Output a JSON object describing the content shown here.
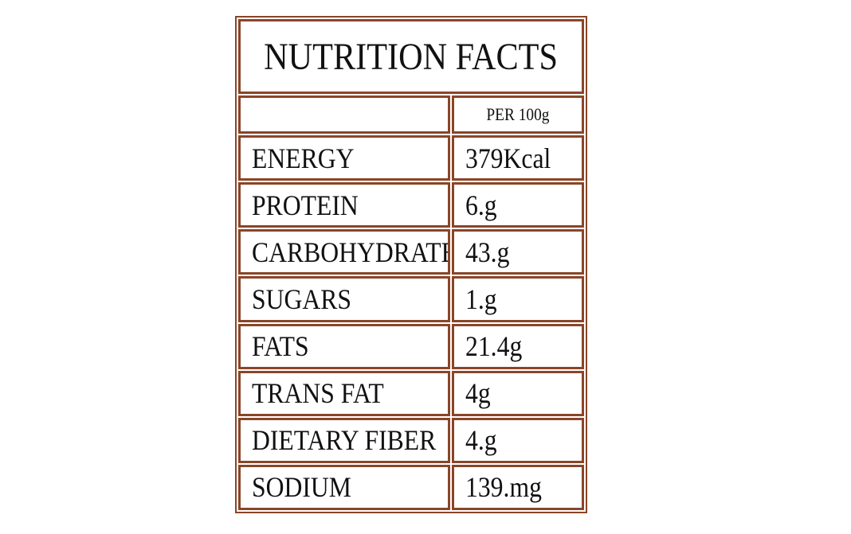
{
  "title": "NUTRITION FACTS",
  "table": {
    "header": [
      "",
      "PER 100g"
    ],
    "rows": [
      [
        "ENERGY",
        "379Kcal"
      ],
      [
        "PROTEIN",
        "6.g"
      ],
      [
        "CARBOHYDRATES",
        "43.g"
      ],
      [
        "SUGARS",
        "1.g"
      ],
      [
        "FATS",
        "21.4g"
      ],
      [
        "TRANS FAT",
        "4g"
      ],
      [
        "DIETARY FIBER",
        "4.g"
      ],
      [
        "SODIUM",
        "139.mg"
      ]
    ]
  }
}
